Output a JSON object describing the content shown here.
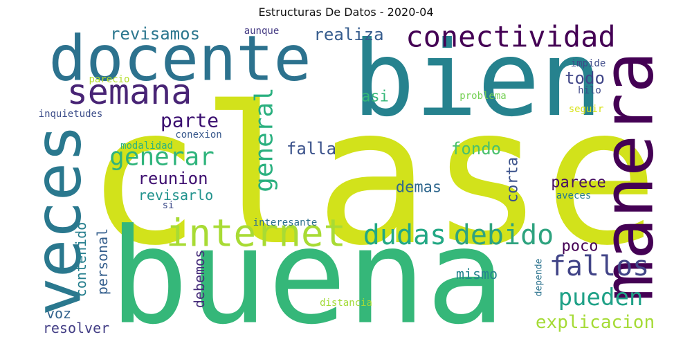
{
  "chart_data": {
    "type": "wordcloud",
    "title": "Estructuras De Datos - 2020-04",
    "words": [
      {
        "text": "clase",
        "color": "#d2e21b"
      },
      {
        "text": "buena",
        "color": "#35b779"
      },
      {
        "text": "bien",
        "color": "#26828e"
      },
      {
        "text": "docente",
        "color": "#2c728e"
      },
      {
        "text": "manera",
        "color": "#440154"
      },
      {
        "text": "veces",
        "color": "#2a788e"
      },
      {
        "text": "internet",
        "color": "#a8db34"
      },
      {
        "text": "semana",
        "color": "#482475"
      },
      {
        "text": "conectividad",
        "color": "#440154"
      },
      {
        "text": "dudas",
        "color": "#22a884"
      },
      {
        "text": "debido",
        "color": "#2ea37f"
      },
      {
        "text": "generar",
        "color": "#2fb47c"
      },
      {
        "text": "general",
        "color": "#2ab07f"
      },
      {
        "text": "fallos",
        "color": "#414487"
      },
      {
        "text": "pueden",
        "color": "#1fa187"
      },
      {
        "text": "explicacion",
        "color": "#a5db36"
      },
      {
        "text": "parte",
        "color": "#3b0f70"
      },
      {
        "text": "reunion",
        "color": "#3e0f70"
      },
      {
        "text": "revisarlo",
        "color": "#20928c"
      },
      {
        "text": "revisamos",
        "color": "#2a768e"
      },
      {
        "text": "realiza",
        "color": "#365c8d"
      },
      {
        "text": "todo",
        "color": "#404688"
      },
      {
        "text": "asi",
        "color": "#35b779"
      },
      {
        "text": "falla",
        "color": "#3b528b"
      },
      {
        "text": "fondo",
        "color": "#4ac16d"
      },
      {
        "text": "demas",
        "color": "#30688e"
      },
      {
        "text": "parece",
        "color": "#471063"
      },
      {
        "text": "corta",
        "color": "#3b528b"
      },
      {
        "text": "poco",
        "color": "#440154"
      },
      {
        "text": "mismo",
        "color": "#25858e"
      },
      {
        "text": "contenido",
        "color": "#277f8e"
      },
      {
        "text": "personal",
        "color": "#355f8d"
      },
      {
        "text": "debemos",
        "color": "#472d7b"
      },
      {
        "text": "voz",
        "color": "#33638d"
      },
      {
        "text": "resolver",
        "color": "#433e85"
      },
      {
        "text": "impide",
        "color": "#3e4a89"
      },
      {
        "text": "hilo",
        "color": "#3f4889"
      },
      {
        "text": "seguir",
        "color": "#d8e219"
      },
      {
        "text": "problema",
        "color": "#75d054"
      },
      {
        "text": "parecio",
        "color": "#b5de2b"
      },
      {
        "text": "aunque",
        "color": "#443a83"
      },
      {
        "text": "inquietudes",
        "color": "#3d4e8a"
      },
      {
        "text": "conexion",
        "color": "#38588c"
      },
      {
        "text": "modalidad",
        "color": "#2fb47c"
      },
      {
        "text": "si",
        "color": "#3e4c8a"
      },
      {
        "text": "interesante",
        "color": "#2d708e"
      },
      {
        "text": "aveces",
        "color": "#287c8e"
      },
      {
        "text": "depende",
        "color": "#2c738e"
      },
      {
        "text": "distancia",
        "color": "#a2da37"
      }
    ]
  }
}
